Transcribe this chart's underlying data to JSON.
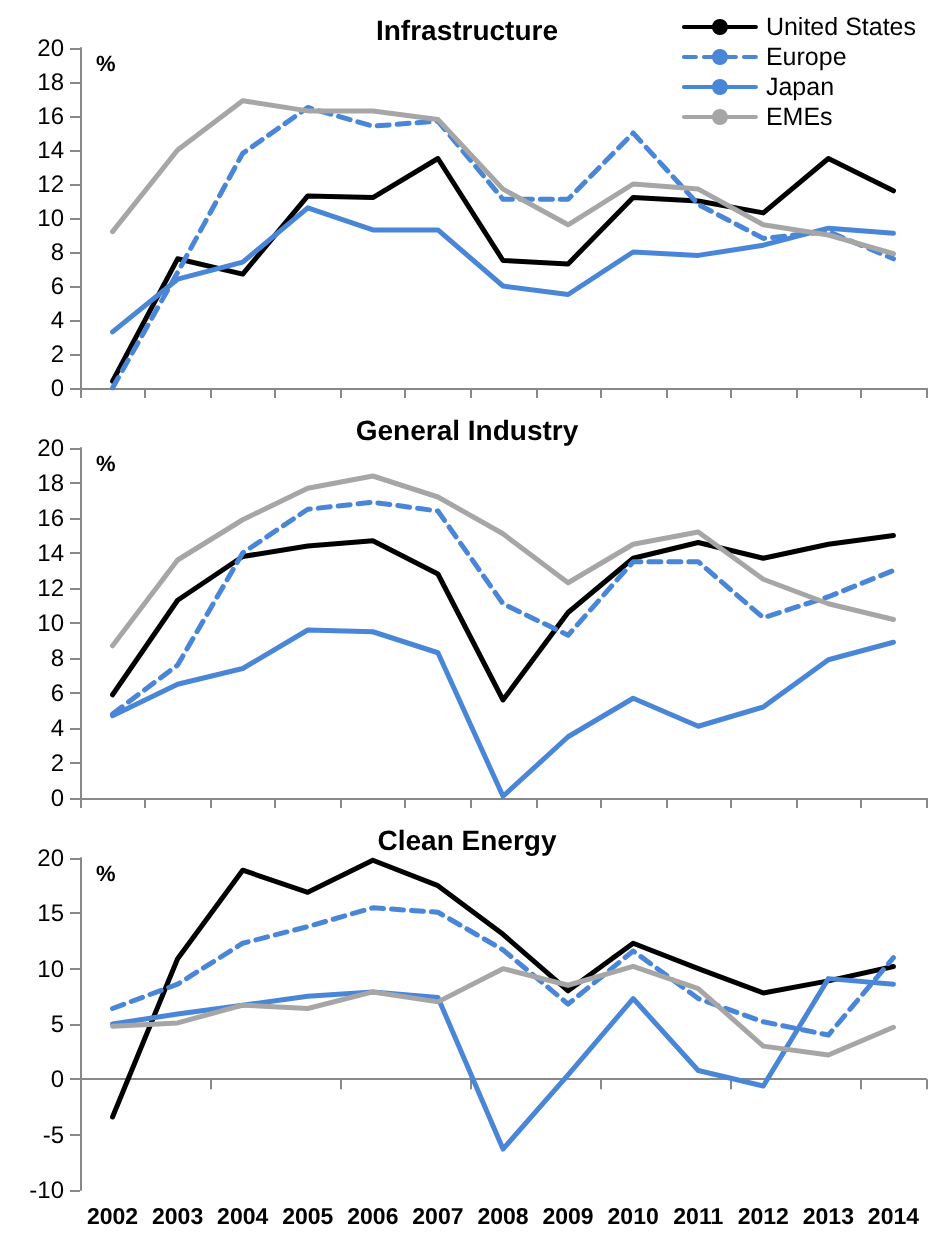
{
  "chart_data": [
    {
      "type": "line",
      "title": "Infrastructure",
      "ylabel": "%",
      "categories": [
        "2002",
        "2003",
        "2004",
        "2005",
        "2006",
        "2007",
        "2008",
        "2009",
        "2010",
        "2011",
        "2012",
        "2013",
        "2014"
      ],
      "ylim": [
        0,
        20
      ],
      "yticks": [
        0,
        2,
        4,
        6,
        8,
        10,
        12,
        14,
        16,
        18,
        20
      ],
      "tick_labels": "y",
      "legend": "top right",
      "grid": false,
      "marker": "none",
      "series": [
        {
          "name": "United States",
          "color": "#000000",
          "line_style": "solid",
          "values": [
            0.4,
            7.6,
            6.7,
            11.3,
            11.2,
            13.5,
            7.5,
            7.3,
            11.2,
            11.0,
            10.3,
            13.5,
            11.6
          ]
        },
        {
          "name": "Europe",
          "color": "#4a86d8",
          "line_style": "dashed",
          "values": [
            0,
            6.8,
            13.8,
            16.5,
            15.4,
            15.7,
            11.1,
            11.1,
            15.0,
            10.8,
            8.8,
            9.2,
            7.6
          ]
        },
        {
          "name": "Japan",
          "color": "#4a86d8",
          "line_style": "solid",
          "values": [
            3.3,
            6.4,
            7.4,
            10.6,
            9.3,
            9.3,
            6.0,
            5.5,
            8.0,
            7.8,
            8.4,
            9.4,
            9.1
          ]
        },
        {
          "name": "EMEs",
          "color": "#a6a6a6",
          "line_style": "solid",
          "values": [
            9.2,
            14.0,
            16.9,
            16.3,
            16.3,
            15.8,
            11.7,
            9.6,
            12.0,
            11.7,
            9.6,
            9.0,
            7.9
          ]
        }
      ]
    },
    {
      "type": "line",
      "title": "General Industry",
      "ylabel": "%",
      "categories": [
        "2002",
        "2003",
        "2004",
        "2005",
        "2006",
        "2007",
        "2008",
        "2009",
        "2010",
        "2011",
        "2012",
        "2013",
        "2014"
      ],
      "ylim": [
        0,
        20
      ],
      "yticks": [
        0,
        2,
        4,
        6,
        8,
        10,
        12,
        14,
        16,
        18,
        20
      ],
      "tick_labels": "y",
      "grid": false,
      "marker": "none",
      "series": [
        {
          "color": "#000000",
          "line_style": "solid",
          "values": [
            5.9,
            11.3,
            13.8,
            14.4,
            14.7,
            12.8,
            5.6,
            10.6,
            13.7,
            14.6,
            13.7,
            14.5,
            15.0
          ]
        },
        {
          "color": "#4a86d8",
          "line_style": "dashed",
          "values": [
            4.8,
            7.6,
            14.0,
            16.5,
            16.9,
            16.4,
            11.1,
            9.3,
            13.5,
            13.5,
            10.3,
            11.5,
            13.0
          ]
        },
        {
          "color": "#4a86d8",
          "line_style": "solid",
          "values": [
            4.7,
            6.5,
            7.4,
            9.6,
            9.5,
            8.3,
            0.1,
            3.5,
            5.7,
            4.1,
            5.2,
            7.9,
            8.9
          ]
        },
        {
          "color": "#a6a6a6",
          "line_style": "solid",
          "values": [
            8.7,
            13.6,
            15.9,
            17.7,
            18.4,
            17.2,
            15.1,
            12.3,
            14.5,
            15.2,
            12.5,
            11.1,
            10.2
          ]
        }
      ]
    },
    {
      "type": "line",
      "title": "Clean Energy",
      "ylabel": "%",
      "categories": [
        "2002",
        "2003",
        "2004",
        "2005",
        "2006",
        "2007",
        "2008",
        "2009",
        "2010",
        "2011",
        "2012",
        "2013",
        "2014"
      ],
      "ylim": [
        -10,
        20
      ],
      "yticks": [
        -10,
        -5,
        0,
        5,
        10,
        15,
        20
      ],
      "marker": "none",
      "series": [
        {
          "color": "#000000",
          "line_style": "solid",
          "values": [
            -3.4,
            10.9,
            18.9,
            16.9,
            19.8,
            17.5,
            13.1,
            8.0,
            12.3,
            10.0,
            7.8,
            8.9,
            10.2
          ]
        },
        {
          "color": "#4a86d8",
          "line_style": "dashed",
          "values": [
            6.4,
            8.6,
            12.3,
            13.8,
            15.5,
            15.1,
            11.7,
            6.8,
            11.6,
            7.3,
            5.2,
            4.0,
            11.0
          ]
        },
        {
          "color": "#4a86d8",
          "line_style": "solid",
          "values": [
            5.0,
            5.9,
            6.7,
            7.5,
            7.9,
            7.4,
            -6.3,
            0.4,
            7.3,
            0.8,
            -0.6,
            9.1,
            8.6
          ]
        },
        {
          "color": "#a6a6a6",
          "line_style": "solid",
          "values": [
            4.8,
            5.1,
            6.7,
            6.4,
            7.9,
            7.0,
            10.0,
            8.5,
            10.2,
            8.2,
            3.0,
            2.2,
            4.7
          ]
        }
      ]
    }
  ]
}
